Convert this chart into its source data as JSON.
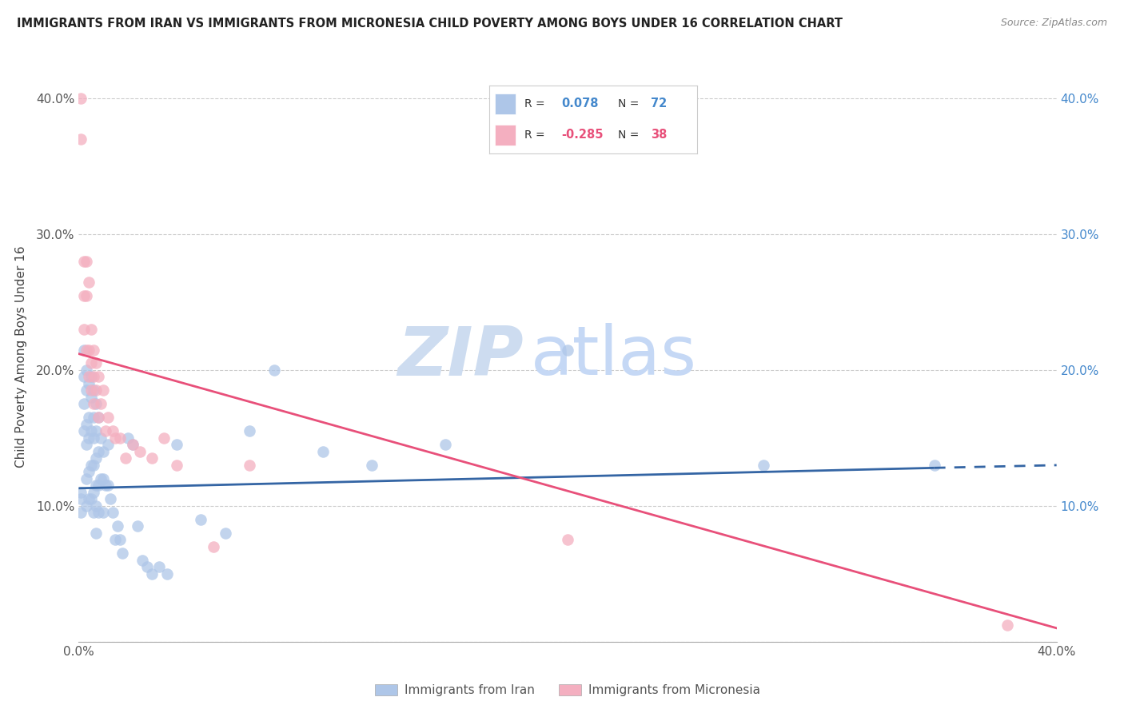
{
  "title": "IMMIGRANTS FROM IRAN VS IMMIGRANTS FROM MICRONESIA CHILD POVERTY AMONG BOYS UNDER 16 CORRELATION CHART",
  "source": "Source: ZipAtlas.com",
  "ylabel": "Child Poverty Among Boys Under 16",
  "legend_label_iran": "Immigrants from Iran",
  "legend_label_micronesia": "Immigrants from Micronesia",
  "iran_R": "0.078",
  "iran_N": "72",
  "micronesia_R": "-0.285",
  "micronesia_N": "38",
  "xlim": [
    0.0,
    0.4
  ],
  "ylim": [
    0.0,
    0.42
  ],
  "yticks": [
    0.0,
    0.1,
    0.2,
    0.3,
    0.4
  ],
  "iran_color": "#aec6e8",
  "iran_line_color": "#3465a4",
  "micronesia_color": "#f4afc0",
  "micronesia_line_color": "#e8507a",
  "watermark_zip_color": "#cddcf0",
  "watermark_atlas_color": "#c5d8f5",
  "iran_x": [
    0.001,
    0.001,
    0.001,
    0.002,
    0.002,
    0.002,
    0.002,
    0.003,
    0.003,
    0.003,
    0.003,
    0.003,
    0.003,
    0.004,
    0.004,
    0.004,
    0.004,
    0.004,
    0.005,
    0.005,
    0.005,
    0.005,
    0.005,
    0.006,
    0.006,
    0.006,
    0.006,
    0.006,
    0.006,
    0.007,
    0.007,
    0.007,
    0.007,
    0.007,
    0.007,
    0.008,
    0.008,
    0.008,
    0.008,
    0.009,
    0.009,
    0.01,
    0.01,
    0.01,
    0.011,
    0.012,
    0.012,
    0.013,
    0.014,
    0.015,
    0.016,
    0.017,
    0.018,
    0.02,
    0.022,
    0.024,
    0.026,
    0.028,
    0.03,
    0.033,
    0.036,
    0.04,
    0.05,
    0.06,
    0.07,
    0.08,
    0.1,
    0.12,
    0.15,
    0.2,
    0.28,
    0.35
  ],
  "iran_y": [
    0.11,
    0.105,
    0.095,
    0.215,
    0.195,
    0.175,
    0.155,
    0.2,
    0.185,
    0.16,
    0.145,
    0.12,
    0.1,
    0.19,
    0.165,
    0.15,
    0.125,
    0.105,
    0.195,
    0.18,
    0.155,
    0.13,
    0.105,
    0.185,
    0.165,
    0.15,
    0.13,
    0.11,
    0.095,
    0.175,
    0.155,
    0.135,
    0.115,
    0.1,
    0.08,
    0.165,
    0.14,
    0.115,
    0.095,
    0.15,
    0.12,
    0.14,
    0.12,
    0.095,
    0.115,
    0.145,
    0.115,
    0.105,
    0.095,
    0.075,
    0.085,
    0.075,
    0.065,
    0.15,
    0.145,
    0.085,
    0.06,
    0.055,
    0.05,
    0.055,
    0.05,
    0.145,
    0.09,
    0.08,
    0.155,
    0.2,
    0.14,
    0.13,
    0.145,
    0.215,
    0.13,
    0.13
  ],
  "micronesia_x": [
    0.001,
    0.001,
    0.002,
    0.002,
    0.002,
    0.003,
    0.003,
    0.003,
    0.004,
    0.004,
    0.004,
    0.005,
    0.005,
    0.005,
    0.006,
    0.006,
    0.006,
    0.007,
    0.007,
    0.008,
    0.008,
    0.009,
    0.01,
    0.011,
    0.012,
    0.014,
    0.015,
    0.017,
    0.019,
    0.022,
    0.025,
    0.03,
    0.035,
    0.04,
    0.055,
    0.07,
    0.2,
    0.38
  ],
  "micronesia_y": [
    0.4,
    0.37,
    0.28,
    0.255,
    0.23,
    0.28,
    0.255,
    0.215,
    0.265,
    0.215,
    0.195,
    0.23,
    0.205,
    0.185,
    0.215,
    0.195,
    0.175,
    0.205,
    0.185,
    0.195,
    0.165,
    0.175,
    0.185,
    0.155,
    0.165,
    0.155,
    0.15,
    0.15,
    0.135,
    0.145,
    0.14,
    0.135,
    0.15,
    0.13,
    0.07,
    0.13,
    0.075,
    0.012
  ],
  "iran_line_x0": 0.0,
  "iran_line_x1": 0.35,
  "iran_line_x_dash_start": 0.35,
  "iran_line_x_dash_end": 0.4,
  "iran_line_y0": 0.113,
  "iran_line_y1": 0.128,
  "iran_line_y_dash_end": 0.13,
  "micronesia_line_x0": 0.0,
  "micronesia_line_x1": 0.4,
  "micronesia_line_y0": 0.212,
  "micronesia_line_y1": 0.01
}
